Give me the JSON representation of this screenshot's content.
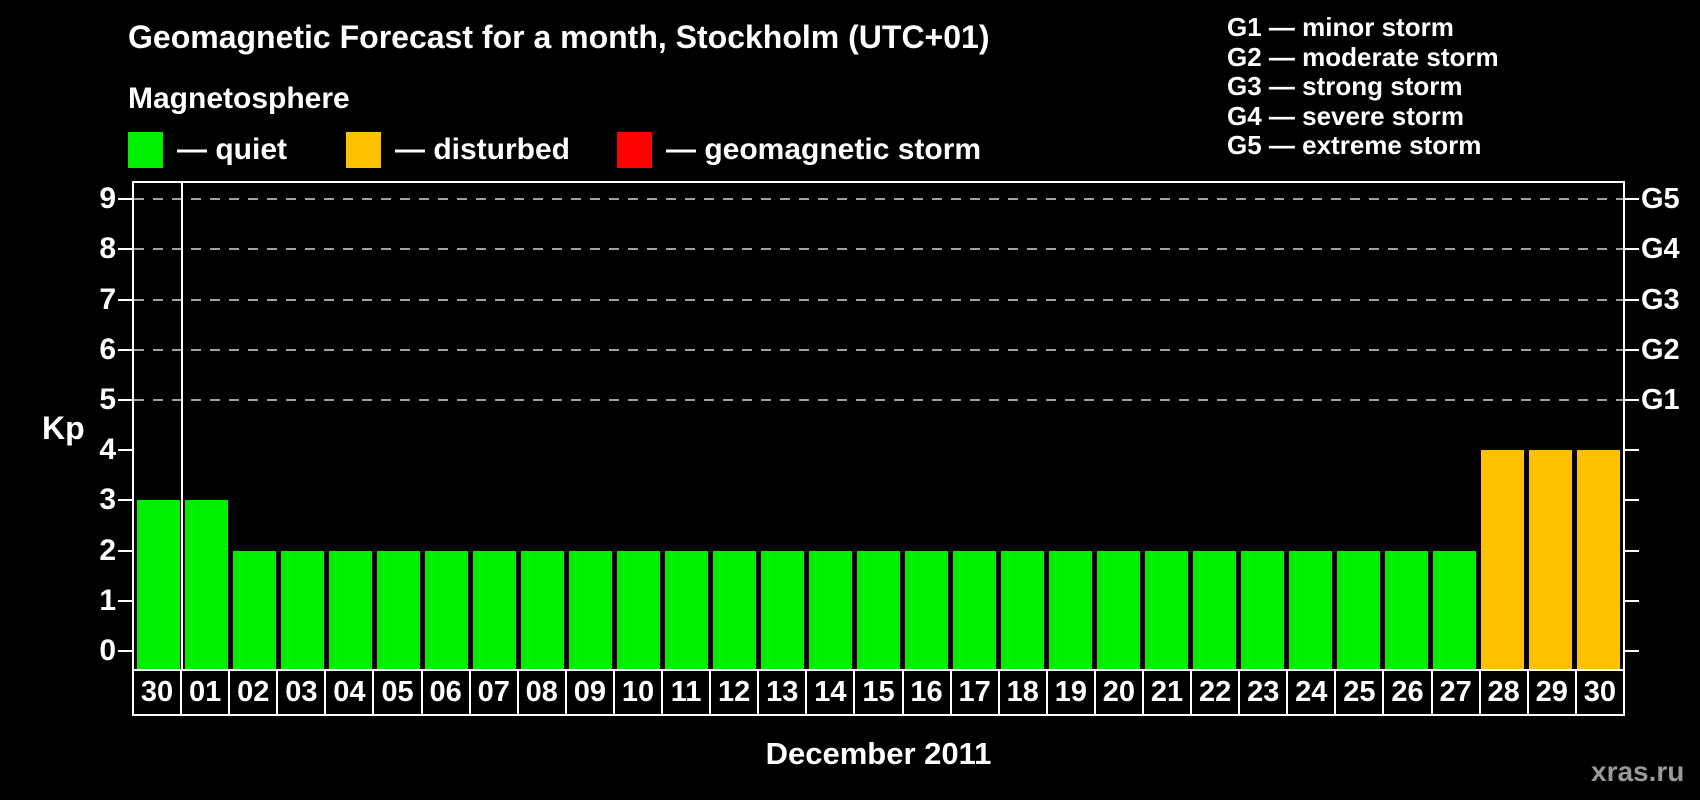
{
  "title": "Geomagnetic Forecast for a month, Stockholm (UTC+01)",
  "subtitle": "Magnetosphere",
  "legend": [
    {
      "key": "quiet",
      "label": "— quiet",
      "color": "#00ee00"
    },
    {
      "key": "disturbed",
      "label": "— disturbed",
      "color": "#ffc000"
    },
    {
      "key": "storm",
      "label": "— geomagnetic storm",
      "color": "#ff0000"
    }
  ],
  "g_scale_legend": [
    {
      "code": "G1",
      "text": "G1 — minor storm",
      "kp": 5
    },
    {
      "code": "G2",
      "text": "G2 — moderate storm",
      "kp": 6
    },
    {
      "code": "G3",
      "text": "G3 — strong storm",
      "kp": 7
    },
    {
      "code": "G4",
      "text": "G4 — severe storm",
      "kp": 8
    },
    {
      "code": "G5",
      "text": "G5 — extreme storm",
      "kp": 9
    }
  ],
  "watermark": "xras.ru",
  "chart_data": {
    "type": "bar",
    "title": "Geomagnetic Forecast for a month, Stockholm (UTC+01)",
    "xlabel": "December 2011",
    "ylabel": "Kp",
    "ylim": [
      0,
      9
    ],
    "yticks": [
      0,
      1,
      2,
      3,
      4,
      5,
      6,
      7,
      8,
      9
    ],
    "gridlines_at": [
      5,
      6,
      7,
      8,
      9
    ],
    "grid": "dashed horizontal at storm levels only",
    "legend_position": "top-left",
    "categories": [
      "30",
      "01",
      "02",
      "03",
      "04",
      "05",
      "06",
      "07",
      "08",
      "09",
      "10",
      "11",
      "12",
      "13",
      "14",
      "15",
      "16",
      "17",
      "18",
      "19",
      "20",
      "21",
      "22",
      "23",
      "24",
      "25",
      "26",
      "27",
      "28",
      "29",
      "30"
    ],
    "values": [
      3,
      3,
      2,
      2,
      2,
      2,
      2,
      2,
      2,
      2,
      2,
      2,
      2,
      2,
      2,
      2,
      2,
      2,
      2,
      2,
      2,
      2,
      2,
      2,
      2,
      2,
      2,
      2,
      4,
      4,
      4
    ],
    "statuses": [
      "quiet",
      "quiet",
      "quiet",
      "quiet",
      "quiet",
      "quiet",
      "quiet",
      "quiet",
      "quiet",
      "quiet",
      "quiet",
      "quiet",
      "quiet",
      "quiet",
      "quiet",
      "quiet",
      "quiet",
      "quiet",
      "quiet",
      "quiet",
      "quiet",
      "quiet",
      "quiet",
      "quiet",
      "quiet",
      "quiet",
      "quiet",
      "quiet",
      "disturbed",
      "disturbed",
      "disturbed"
    ],
    "status_colors": {
      "quiet": "#00ee00",
      "disturbed": "#ffc000",
      "storm": "#ff0000"
    }
  }
}
